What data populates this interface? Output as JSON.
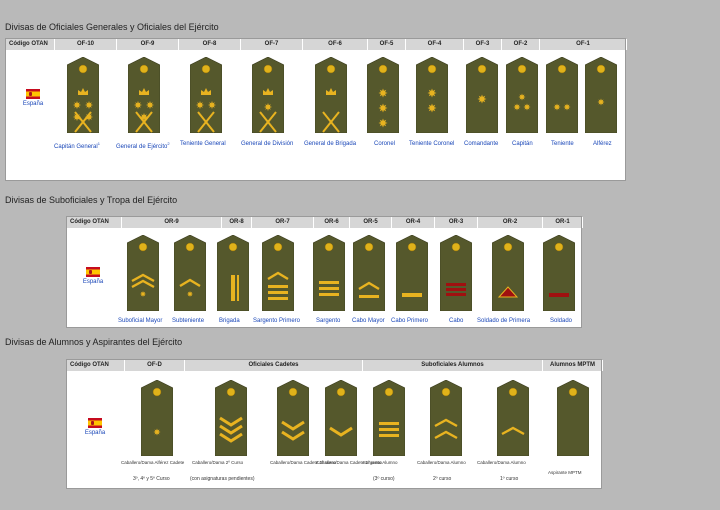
{
  "sections": [
    {
      "title": "Divisas de Oficiales Generales y Oficiales del Ejército",
      "header": [
        "Código OTAN",
        "OF-10",
        "OF-9",
        "OF-8",
        "OF-7",
        "OF-6",
        "OF-5",
        "OF-4",
        "OF-3",
        "OF-2",
        "OF-1"
      ],
      "country": "España",
      "ranks": [
        "Capitán General",
        "General de Ejército",
        "Teniente General",
        "General de División",
        "General de Brigada",
        "Coronel",
        "Teniente Coronel",
        "Comandante",
        "Capitán",
        "Teniente",
        "Alférez"
      ],
      "superscripts": [
        "1",
        "2"
      ]
    },
    {
      "title": "Divisas de Suboficiales y Tropa del Ejército",
      "header": [
        "Código OTAN",
        "OR-9",
        "OR-8",
        "OR-7",
        "OR-6",
        "OR-5",
        "OR-4",
        "OR-3",
        "OR-2",
        "OR-1"
      ],
      "country": "España",
      "ranks": [
        "Suboficial Mayor",
        "Subteniente",
        "Brigada",
        "Sargento Primero",
        "Sargento",
        "Cabo Mayor",
        "Cabo Primero",
        "Cabo",
        "Soldado de Primera",
        "Soldado"
      ]
    },
    {
      "title": "Divisas de Alumnos y Aspirantes del Ejército",
      "header": [
        "Código OTAN",
        "OF-D",
        "Oficiales Cadetes",
        "Suboficiales Alumnos",
        "Alumnos MPTM"
      ],
      "country": "España",
      "small_labels": [
        "Caballero/Dama Alférez Cadete",
        "Caballero/Dama 2º Curso",
        "Caballero/Dama Cadete 2º curso",
        "Caballero/Dama Cadete 1º curso",
        "Sargento Alumno",
        "Caballero/Dama Alumno",
        "Caballero/Dama Alumno",
        "Aspirante MPTM"
      ],
      "course_labels": [
        "3º, 4º y 5º Curso",
        "(con asignaturas pendientes)",
        "",
        "",
        "(3º curso)",
        "2º curso",
        "1º curso",
        ""
      ]
    }
  ],
  "colors": {
    "strap": "#55582c",
    "button": "#e0b21a",
    "badge": "#e8b320",
    "bar_red": "#a01010",
    "link": "#1a47b8"
  }
}
